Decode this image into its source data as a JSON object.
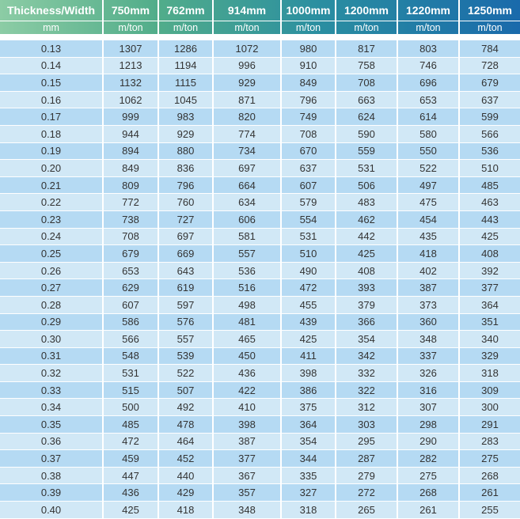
{
  "headers": [
    "Thickness/Width",
    "750mm",
    "762mm",
    "914mm",
    "1000mm",
    "1200mm",
    "1220mm",
    "1250mm"
  ],
  "units": [
    "mm",
    "m/ton",
    "m/ton",
    "m/ton",
    "m/ton",
    "m/ton",
    "m/ton",
    "m/ton"
  ],
  "rows": [
    [
      "0.13",
      "1307",
      "1286",
      "1072",
      "980",
      "817",
      "803",
      "784"
    ],
    [
      "0.14",
      "1213",
      "1194",
      "996",
      "910",
      "758",
      "746",
      "728"
    ],
    [
      "0.15",
      "1132",
      "1115",
      "929",
      "849",
      "708",
      "696",
      "679"
    ],
    [
      "0.16",
      "1062",
      "1045",
      "871",
      "796",
      "663",
      "653",
      "637"
    ],
    [
      "0.17",
      "999",
      "983",
      "820",
      "749",
      "624",
      "614",
      "599"
    ],
    [
      "0.18",
      "944",
      "929",
      "774",
      "708",
      "590",
      "580",
      "566"
    ],
    [
      "0.19",
      "894",
      "880",
      "734",
      "670",
      "559",
      "550",
      "536"
    ],
    [
      "0.20",
      "849",
      "836",
      "697",
      "637",
      "531",
      "522",
      "510"
    ],
    [
      "0.21",
      "809",
      "796",
      "664",
      "607",
      "506",
      "497",
      "485"
    ],
    [
      "0.22",
      "772",
      "760",
      "634",
      "579",
      "483",
      "475",
      "463"
    ],
    [
      "0.23",
      "738",
      "727",
      "606",
      "554",
      "462",
      "454",
      "443"
    ],
    [
      "0.24",
      "708",
      "697",
      "581",
      "531",
      "442",
      "435",
      "425"
    ],
    [
      "0.25",
      "679",
      "669",
      "557",
      "510",
      "425",
      "418",
      "408"
    ],
    [
      "0.26",
      "653",
      "643",
      "536",
      "490",
      "408",
      "402",
      "392"
    ],
    [
      "0.27",
      "629",
      "619",
      "516",
      "472",
      "393",
      "387",
      "377"
    ],
    [
      "0.28",
      "607",
      "597",
      "498",
      "455",
      "379",
      "373",
      "364"
    ],
    [
      "0.29",
      "586",
      "576",
      "481",
      "439",
      "366",
      "360",
      "351"
    ],
    [
      "0.30",
      "566",
      "557",
      "465",
      "425",
      "354",
      "348",
      "340"
    ],
    [
      "0.31",
      "548",
      "539",
      "450",
      "411",
      "342",
      "337",
      "329"
    ],
    [
      "0.32",
      "531",
      "522",
      "436",
      "398",
      "332",
      "326",
      "318"
    ],
    [
      "0.33",
      "515",
      "507",
      "422",
      "386",
      "322",
      "316",
      "309"
    ],
    [
      "0.34",
      "500",
      "492",
      "410",
      "375",
      "312",
      "307",
      "300"
    ],
    [
      "0.35",
      "485",
      "478",
      "398",
      "364",
      "303",
      "298",
      "291"
    ],
    [
      "0.36",
      "472",
      "464",
      "387",
      "354",
      "295",
      "290",
      "283"
    ],
    [
      "0.37",
      "459",
      "452",
      "377",
      "344",
      "287",
      "282",
      "275"
    ],
    [
      "0.38",
      "447",
      "440",
      "367",
      "335",
      "279",
      "275",
      "268"
    ],
    [
      "0.39",
      "436",
      "429",
      "357",
      "327",
      "272",
      "268",
      "261"
    ],
    [
      "0.40",
      "425",
      "418",
      "348",
      "318",
      "265",
      "261",
      "255"
    ]
  ]
}
